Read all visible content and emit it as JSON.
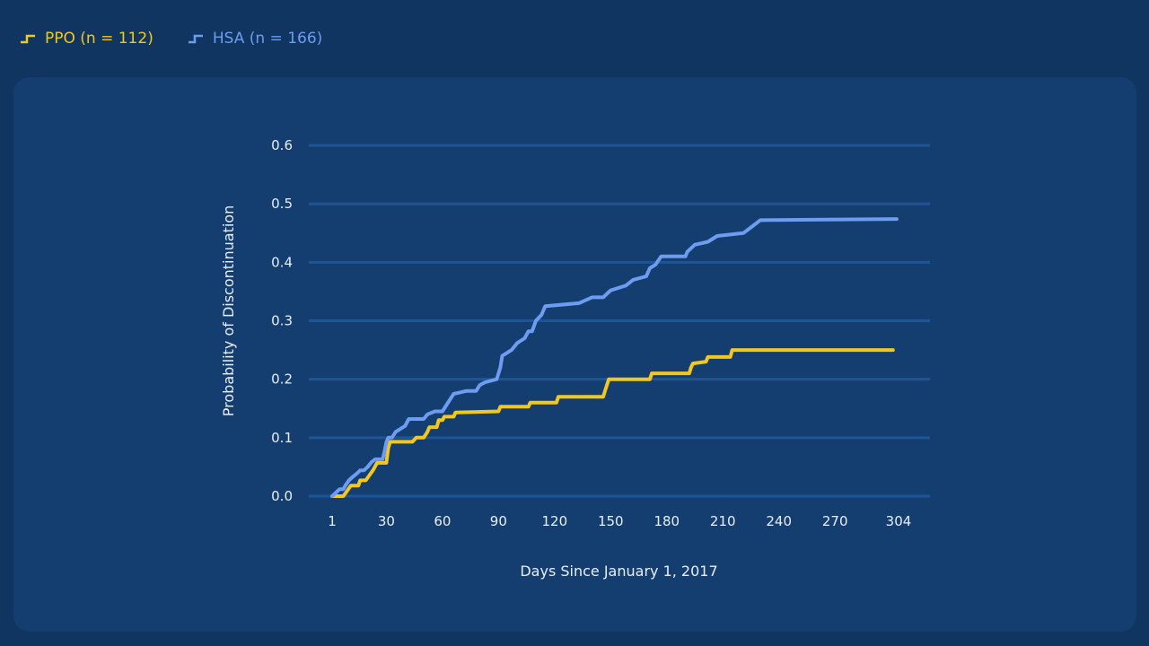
{
  "chart_data": {
    "type": "line",
    "step": true,
    "xlabel": "Days Since January 1, 2017",
    "ylabel": "Probability of Discontinuation",
    "xlim": [
      1,
      304
    ],
    "ylim": [
      0,
      0.6
    ],
    "x_ticks": [
      1,
      30,
      60,
      90,
      120,
      150,
      180,
      210,
      240,
      270,
      304
    ],
    "y_ticks": [
      0.0,
      0.1,
      0.2,
      0.3,
      0.4,
      0.5,
      0.6
    ],
    "y_tick_labels": [
      "0.0",
      "0.1",
      "0.2",
      "0.3",
      "0.4",
      "0.5",
      "0.6"
    ],
    "grid": "horizontal",
    "legend_position": "top-left",
    "series": [
      {
        "name": "PPO (n = 112)",
        "color": "#f2c81e",
        "points": [
          [
            1,
            0
          ],
          [
            7,
            0
          ],
          [
            9,
            0.009
          ],
          [
            11,
            0.018
          ],
          [
            15,
            0.018
          ],
          [
            16,
            0.027
          ],
          [
            18,
            0.027
          ],
          [
            19,
            0.027
          ],
          [
            21,
            0.036
          ],
          [
            23,
            0.045
          ],
          [
            25,
            0.057
          ],
          [
            30,
            0.057
          ],
          [
            31,
            0.082
          ],
          [
            32,
            0.093
          ],
          [
            44,
            0.093
          ],
          [
            46,
            0.1
          ],
          [
            50,
            0.1
          ],
          [
            52,
            0.11
          ],
          [
            53,
            0.118
          ],
          [
            57,
            0.118
          ],
          [
            58,
            0.13
          ],
          [
            60,
            0.13
          ],
          [
            61,
            0.136
          ],
          [
            66,
            0.136
          ],
          [
            67,
            0.143
          ],
          [
            90,
            0.145
          ],
          [
            91,
            0.153
          ],
          [
            106,
            0.153
          ],
          [
            107,
            0.16
          ],
          [
            121,
            0.16
          ],
          [
            122,
            0.17
          ],
          [
            146,
            0.17
          ],
          [
            147,
            0.18
          ],
          [
            148,
            0.19
          ],
          [
            149,
            0.2
          ],
          [
            171,
            0.2
          ],
          [
            172,
            0.21
          ],
          [
            192,
            0.21
          ],
          [
            193,
            0.22
          ],
          [
            194,
            0.227
          ],
          [
            201,
            0.23
          ],
          [
            202,
            0.238
          ],
          [
            214,
            0.238
          ],
          [
            215,
            0.25
          ],
          [
            301,
            0.25
          ]
        ]
      },
      {
        "name": "HSA (n = 166)",
        "color": "#6d9cf0",
        "points": [
          [
            1,
            0
          ],
          [
            3,
            0.006
          ],
          [
            5,
            0.012
          ],
          [
            7,
            0.012
          ],
          [
            8,
            0.018
          ],
          [
            10,
            0.027
          ],
          [
            12,
            0.033
          ],
          [
            14,
            0.038
          ],
          [
            16,
            0.044
          ],
          [
            18,
            0.044
          ],
          [
            20,
            0.05
          ],
          [
            22,
            0.058
          ],
          [
            24,
            0.063
          ],
          [
            28,
            0.063
          ],
          [
            29,
            0.076
          ],
          [
            30,
            0.092
          ],
          [
            31,
            0.1
          ],
          [
            33,
            0.1
          ],
          [
            35,
            0.11
          ],
          [
            40,
            0.12
          ],
          [
            42,
            0.132
          ],
          [
            50,
            0.132
          ],
          [
            52,
            0.14
          ],
          [
            56,
            0.145
          ],
          [
            60,
            0.145
          ],
          [
            62,
            0.155
          ],
          [
            64,
            0.165
          ],
          [
            66,
            0.175
          ],
          [
            73,
            0.18
          ],
          [
            78,
            0.18
          ],
          [
            80,
            0.19
          ],
          [
            83,
            0.195
          ],
          [
            89,
            0.2
          ],
          [
            91,
            0.22
          ],
          [
            92,
            0.24
          ],
          [
            97,
            0.25
          ],
          [
            100,
            0.262
          ],
          [
            104,
            0.27
          ],
          [
            106,
            0.282
          ],
          [
            108,
            0.282
          ],
          [
            110,
            0.3
          ],
          [
            113,
            0.31
          ],
          [
            115,
            0.325
          ],
          [
            133,
            0.33
          ],
          [
            140,
            0.34
          ],
          [
            146,
            0.34
          ],
          [
            148,
            0.346
          ],
          [
            150,
            0.352
          ],
          [
            158,
            0.36
          ],
          [
            162,
            0.37
          ],
          [
            169,
            0.376
          ],
          [
            171,
            0.39
          ],
          [
            174,
            0.396
          ],
          [
            177,
            0.41
          ],
          [
            190,
            0.41
          ],
          [
            191,
            0.418
          ],
          [
            195,
            0.43
          ],
          [
            202,
            0.435
          ],
          [
            207,
            0.445
          ],
          [
            221,
            0.45
          ],
          [
            226,
            0.462
          ],
          [
            230,
            0.472
          ],
          [
            303,
            0.474
          ]
        ]
      }
    ]
  }
}
